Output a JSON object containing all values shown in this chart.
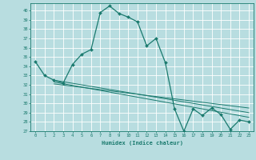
{
  "xlabel": "Humidex (Indice chaleur)",
  "xlim": [
    -0.5,
    23.5
  ],
  "ylim": [
    27,
    40.8
  ],
  "yticks": [
    27,
    28,
    29,
    30,
    31,
    32,
    33,
    34,
    35,
    36,
    37,
    38,
    39,
    40
  ],
  "xticks": [
    0,
    1,
    2,
    3,
    4,
    5,
    6,
    7,
    8,
    9,
    10,
    11,
    12,
    13,
    14,
    15,
    16,
    17,
    18,
    19,
    20,
    21,
    22,
    23
  ],
  "bg_color": "#b8dde0",
  "grid_color": "#ffffff",
  "line_color": "#1a7a6e",
  "line1_x": [
    0,
    1,
    2,
    3,
    4,
    5,
    6,
    7,
    8,
    9,
    10,
    11,
    12,
    13,
    14,
    15,
    16,
    17,
    18,
    19,
    20,
    21,
    22,
    23
  ],
  "line1_y": [
    34.5,
    33.0,
    32.5,
    32.2,
    34.2,
    35.3,
    35.8,
    39.8,
    40.5,
    39.7,
    39.3,
    38.8,
    36.2,
    37.0,
    34.4,
    29.4,
    27.0,
    29.4,
    28.7,
    29.5,
    28.8,
    27.2,
    28.2,
    28.0
  ],
  "line2_x": [
    2,
    23
  ],
  "line2_y": [
    32.5,
    29.0
  ],
  "line3_x": [
    2,
    23
  ],
  "line3_y": [
    32.3,
    28.5
  ],
  "line4_x": [
    2,
    23
  ],
  "line4_y": [
    32.1,
    29.5
  ]
}
